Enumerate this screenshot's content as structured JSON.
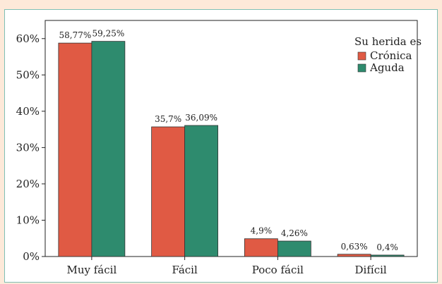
{
  "chart_data": {
    "type": "bar",
    "categories": [
      "Muy fácil",
      "Fácil",
      "Poco fácil",
      "Difícil"
    ],
    "series": [
      {
        "name": "Crónica",
        "values": [
          58.77,
          35.7,
          4.9,
          0.63
        ],
        "labels": [
          "58,77%",
          "35,7%",
          "4,9%",
          "0,63%"
        ],
        "color": "#e05a44"
      },
      {
        "name": "Aguda",
        "values": [
          59.25,
          36.09,
          4.26,
          0.4
        ],
        "labels": [
          "59,25%",
          "36,09%",
          "4,26%",
          "0,4%"
        ],
        "color": "#2e8b6e"
      }
    ],
    "legend_title": "Su herida es",
    "legend_position": "top-right",
    "ylim": [
      0,
      65
    ],
    "yticks": [
      0,
      10,
      20,
      30,
      40,
      50,
      60
    ],
    "ytick_labels": [
      "0%",
      "10%",
      "20%",
      "30%",
      "40%",
      "50%",
      "60%"
    ],
    "grid": false
  }
}
